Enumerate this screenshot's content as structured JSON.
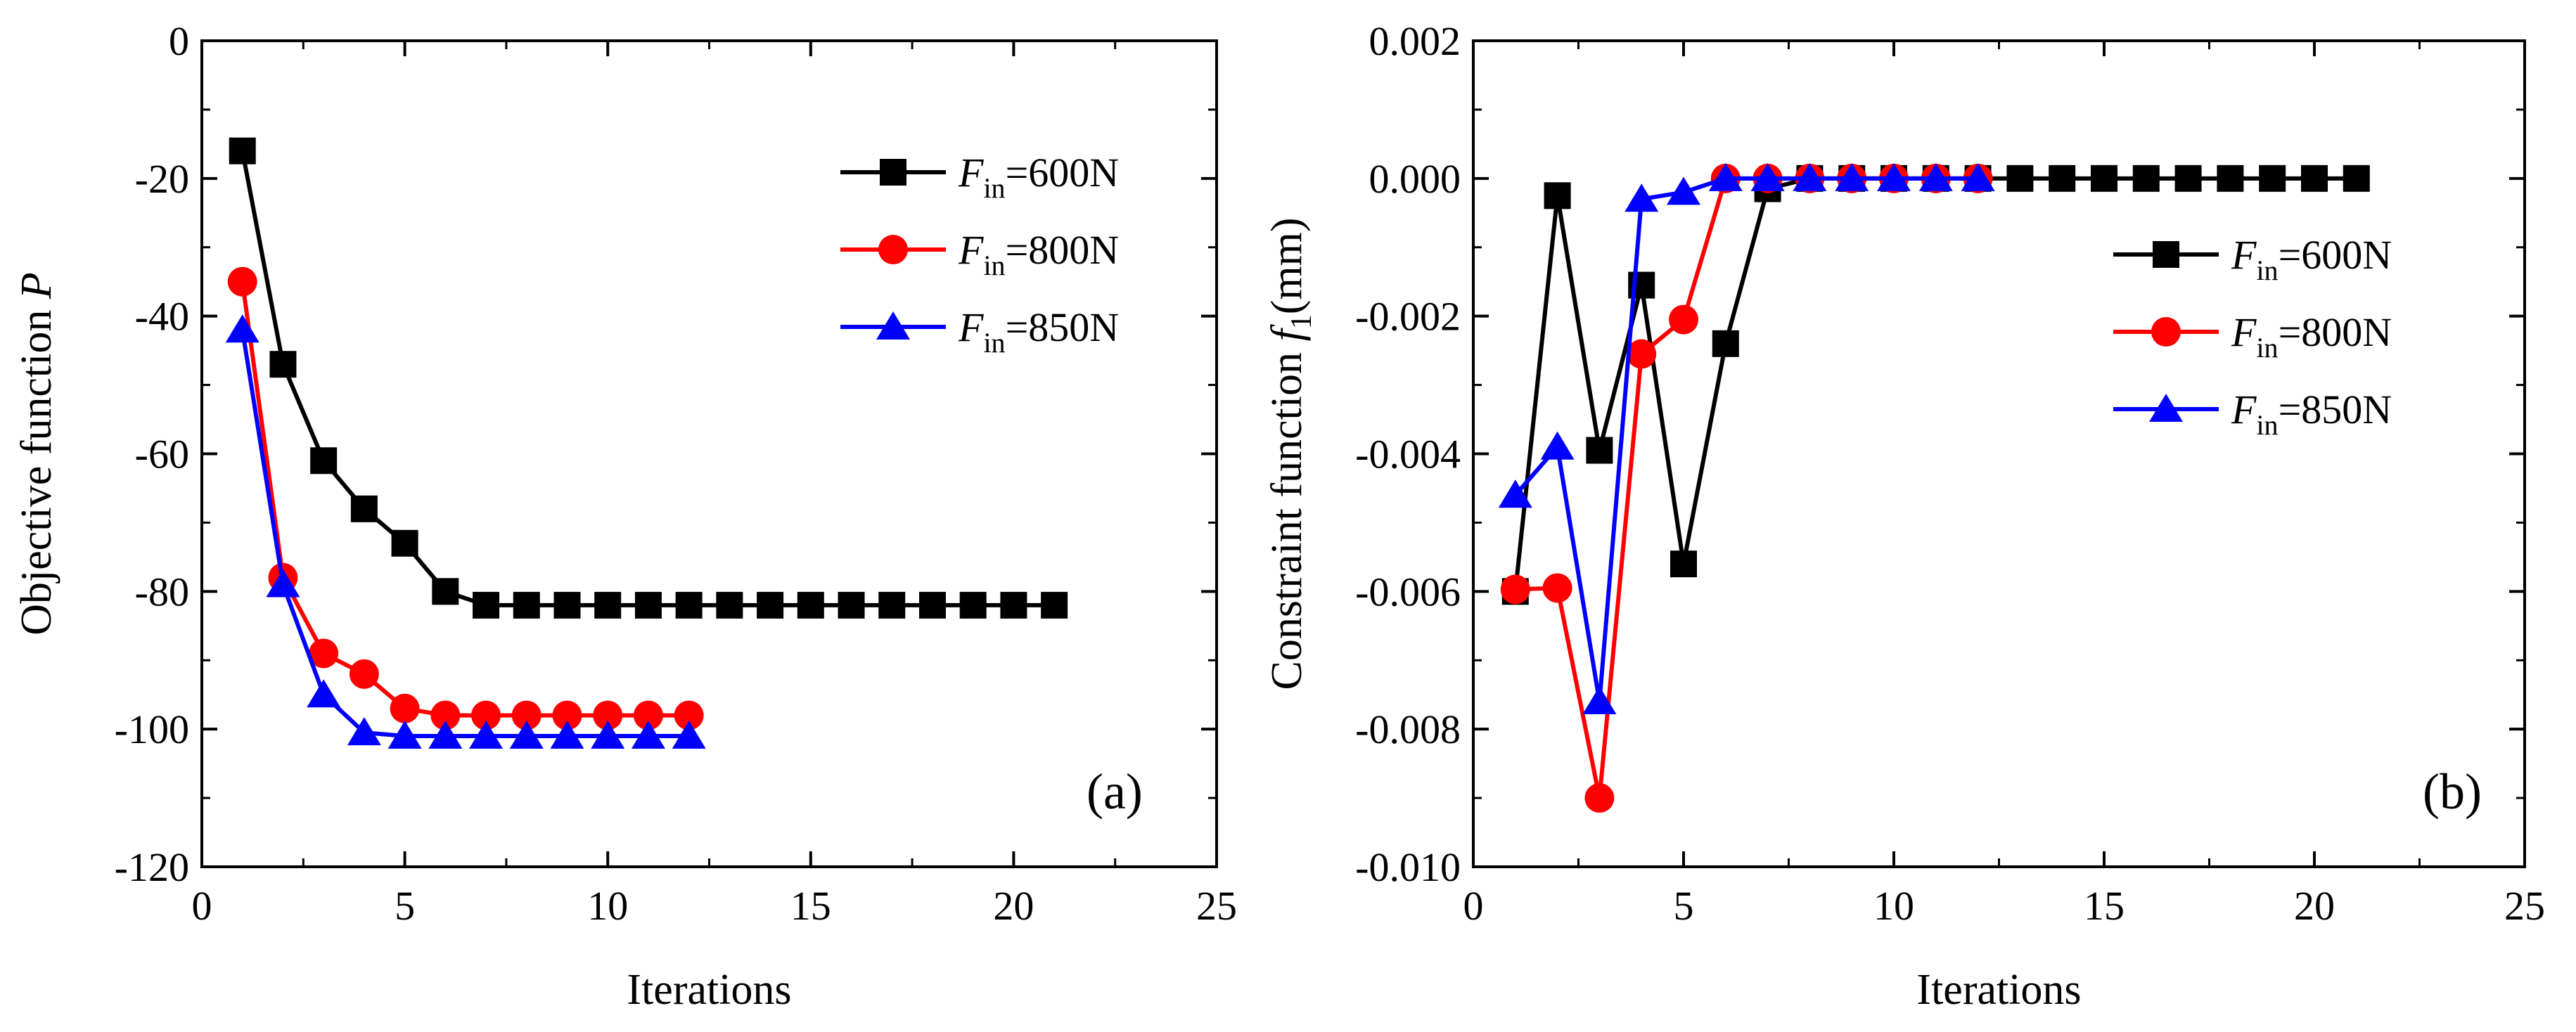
{
  "chart_data": [
    {
      "type": "line",
      "panel_label": "(a)",
      "xlabel": "Iterations",
      "ylabel": "Objective function P",
      "ylabel_plain": "Objective function ",
      "ylabel_italic": "P",
      "xlim": [
        0,
        25
      ],
      "ylim": [
        -120,
        0
      ],
      "xticks": [
        0,
        5,
        10,
        15,
        20,
        25
      ],
      "yticks": [
        0,
        -20,
        -40,
        -60,
        -80,
        -100,
        -120
      ],
      "ytick_labels": [
        "0",
        "-20",
        "-40",
        "-60",
        "-80",
        "-100",
        "-120"
      ],
      "legend_position": "top-right",
      "grid": false,
      "series": [
        {
          "name": "Fin=600N",
          "legend_var": "F",
          "legend_sub": "in",
          "legend_rest": "=600N",
          "color": "#000000",
          "marker": "square",
          "x": [
            1,
            2,
            3,
            4,
            5,
            6,
            7,
            8,
            9,
            10,
            11,
            12,
            13,
            14,
            15,
            16,
            17,
            18,
            19,
            20,
            21
          ],
          "y": [
            -16,
            -47,
            -61,
            -68,
            -73,
            -80,
            -82,
            -82,
            -82,
            -82,
            -82,
            -82,
            -82,
            -82,
            -82,
            -82,
            -82,
            -82,
            -82,
            -82,
            -82
          ]
        },
        {
          "name": "Fin=800N",
          "legend_var": "F",
          "legend_sub": "in",
          "legend_rest": "=800N",
          "color": "#ff0000",
          "marker": "circle",
          "x": [
            1,
            2,
            3,
            4,
            5,
            6,
            7,
            8,
            9,
            10,
            11,
            12
          ],
          "y": [
            -35,
            -78,
            -89,
            -92,
            -97,
            -98,
            -98,
            -98,
            -98,
            -98,
            -98,
            -98
          ]
        },
        {
          "name": "Fin=850N",
          "legend_var": "F",
          "legend_sub": "in",
          "legend_rest": "=850N",
          "color": "#0000ff",
          "marker": "triangle",
          "x": [
            1,
            2,
            3,
            4,
            5,
            6,
            7,
            8,
            9,
            10,
            11,
            12
          ],
          "y": [
            -42,
            -79,
            -95,
            -100.5,
            -101,
            -101,
            -101,
            -101,
            -101,
            -101,
            -101,
            -101
          ]
        }
      ]
    },
    {
      "type": "line",
      "panel_label": "(b)",
      "xlabel": "Iterations",
      "ylabel": "Constraint function f1(mm)",
      "ylabel_plain": "Constraint function ",
      "ylabel_italic": "f",
      "ylabel_sub": "1",
      "ylabel_rest": "(mm)",
      "xlim": [
        0,
        25
      ],
      "ylim": [
        -0.01,
        0.002
      ],
      "xticks": [
        0,
        5,
        10,
        15,
        20,
        25
      ],
      "yticks": [
        0.002,
        0.0,
        -0.002,
        -0.004,
        -0.006,
        -0.008,
        -0.01
      ],
      "ytick_labels": [
        "0.002",
        "0.000",
        "-0.002",
        "-0.004",
        "-0.006",
        "-0.008",
        "-0.010"
      ],
      "legend_position": "right-upper",
      "grid": false,
      "series": [
        {
          "name": "Fin=600N",
          "legend_var": "F",
          "legend_sub": "in",
          "legend_rest": "=600N",
          "color": "#000000",
          "marker": "square",
          "x": [
            1,
            2,
            3,
            4,
            5,
            6,
            7,
            8,
            9,
            10,
            11,
            12,
            13,
            14,
            15,
            16,
            17,
            18,
            19,
            20,
            21
          ],
          "y": [
            -0.006,
            -0.00025,
            -0.00395,
            -0.00155,
            -0.0056,
            -0.0024,
            -0.00015,
            0,
            0,
            0,
            0,
            0,
            0,
            0,
            0,
            0,
            0,
            0,
            0,
            0,
            0
          ]
        },
        {
          "name": "Fin=800N",
          "legend_var": "F",
          "legend_sub": "in",
          "legend_rest": "=800N",
          "color": "#ff0000",
          "marker": "circle",
          "x": [
            1,
            2,
            3,
            4,
            5,
            6,
            7,
            8,
            9,
            10,
            11,
            12
          ],
          "y": [
            -0.00597,
            -0.00595,
            -0.009,
            -0.00255,
            -0.00205,
            0,
            0,
            0,
            0,
            0,
            0,
            0
          ]
        },
        {
          "name": "Fin=850N",
          "legend_var": "F",
          "legend_sub": "in",
          "legend_rest": "=850N",
          "color": "#0000ff",
          "marker": "triangle",
          "x": [
            1,
            2,
            3,
            4,
            5,
            6,
            7,
            8,
            9,
            10,
            11,
            12
          ],
          "y": [
            -0.0046,
            -0.0039,
            -0.0076,
            -0.0003,
            -0.0002,
            0,
            0,
            0,
            0,
            0,
            0,
            0
          ]
        }
      ]
    }
  ]
}
